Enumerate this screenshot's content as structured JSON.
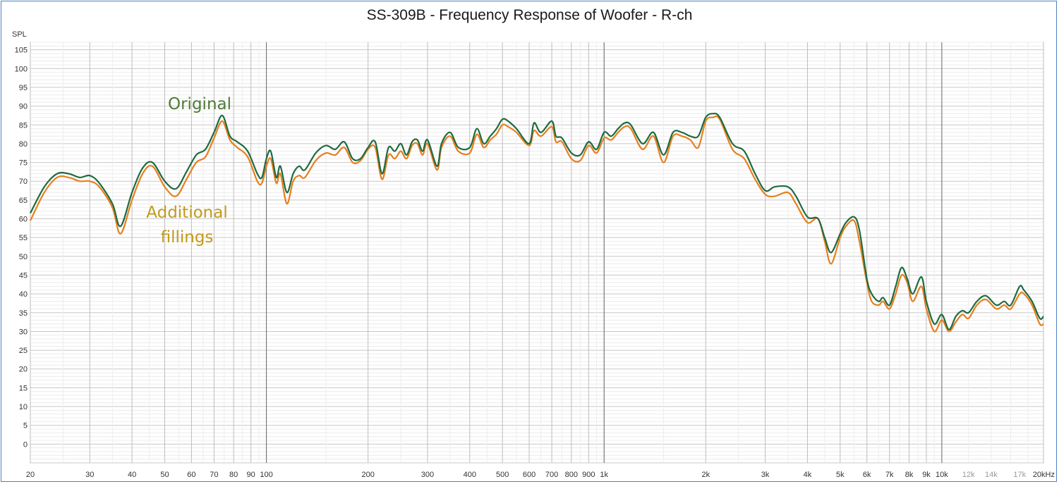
{
  "chart_data": {
    "type": "line",
    "title": "SS-309B - Frequency Response of Woofer - R-ch",
    "ylabel": "SPL",
    "x_scale": "log",
    "xlim": [
      20,
      20000
    ],
    "ylim": [
      -5,
      107
    ],
    "grid": true,
    "y_ticks": [
      0,
      5,
      10,
      15,
      20,
      25,
      30,
      35,
      40,
      45,
      50,
      55,
      60,
      65,
      70,
      75,
      80,
      85,
      90,
      95,
      100,
      105
    ],
    "x_ticks": [
      {
        "v": 20,
        "label": "20"
      },
      {
        "v": 30,
        "label": "30"
      },
      {
        "v": 40,
        "label": "40"
      },
      {
        "v": 50,
        "label": "50"
      },
      {
        "v": 60,
        "label": "60"
      },
      {
        "v": 70,
        "label": "70"
      },
      {
        "v": 80,
        "label": "80"
      },
      {
        "v": 90,
        "label": "90"
      },
      {
        "v": 100,
        "label": "100"
      },
      {
        "v": 200,
        "label": "200"
      },
      {
        "v": 300,
        "label": "300"
      },
      {
        "v": 400,
        "label": "400"
      },
      {
        "v": 500,
        "label": "500"
      },
      {
        "v": 600,
        "label": "600"
      },
      {
        "v": 700,
        "label": "700"
      },
      {
        "v": 800,
        "label": "800"
      },
      {
        "v": 900,
        "label": "900"
      },
      {
        "v": 1000,
        "label": "1k"
      },
      {
        "v": 2000,
        "label": "2k"
      },
      {
        "v": 3000,
        "label": "3k"
      },
      {
        "v": 4000,
        "label": "4k"
      },
      {
        "v": 5000,
        "label": "5k"
      },
      {
        "v": 6000,
        "label": "6k"
      },
      {
        "v": 7000,
        "label": "7k"
      },
      {
        "v": 8000,
        "label": "8k"
      },
      {
        "v": 9000,
        "label": "9k"
      },
      {
        "v": 10000,
        "label": "10k"
      },
      {
        "v": 12000,
        "label": "12k",
        "minor": true
      },
      {
        "v": 14000,
        "label": "14k",
        "minor": true
      },
      {
        "v": 17000,
        "label": "17k",
        "minor": true
      },
      {
        "v": 20000,
        "label": "20kHz"
      }
    ],
    "series": [
      {
        "name": "Original",
        "color": "#1e6b3f",
        "x": [
          20,
          22,
          24,
          26,
          28,
          30,
          32,
          35,
          37,
          40,
          43,
          46,
          50,
          54,
          58,
          62,
          66,
          70,
          74,
          78,
          82,
          88,
          94,
          97,
          100,
          103,
          107,
          110,
          115,
          120,
          125,
          130,
          140,
          150,
          160,
          170,
          180,
          190,
          200,
          210,
          220,
          230,
          240,
          250,
          260,
          270,
          280,
          290,
          300,
          320,
          330,
          350,
          370,
          400,
          420,
          440,
          460,
          480,
          500,
          520,
          550,
          600,
          620,
          650,
          700,
          720,
          750,
          800,
          850,
          900,
          950,
          1000,
          1050,
          1100,
          1150,
          1200,
          1300,
          1400,
          1500,
          1600,
          1700,
          1800,
          1900,
          2000,
          2100,
          2200,
          2400,
          2600,
          2800,
          3000,
          3200,
          3500,
          3700,
          4000,
          4300,
          4500,
          4700,
          5000,
          5200,
          5500,
          5700,
          6000,
          6200,
          6500,
          6700,
          7000,
          7300,
          7600,
          7900,
          8200,
          8700,
          9000,
          9500,
          10000,
          10500,
          11000,
          11500,
          12000,
          12700,
          13500,
          14500,
          15300,
          16000,
          17000,
          17500,
          18500,
          19500,
          20000
        ],
        "y": [
          61.5,
          68.5,
          72,
          72,
          71,
          71.5,
          69.5,
          64,
          58,
          67,
          73.5,
          75,
          70,
          68,
          72.5,
          77,
          78.5,
          83,
          87.5,
          82,
          80.5,
          78,
          72,
          71,
          76,
          78,
          71,
          74,
          67,
          72,
          74,
          73,
          77.5,
          79.5,
          78.5,
          80.5,
          76,
          76,
          79,
          80.5,
          72,
          79,
          78,
          80,
          77,
          80.5,
          81,
          78,
          81,
          74,
          80,
          83,
          79,
          79,
          84,
          80,
          82,
          84,
          86.5,
          86,
          84,
          80,
          85.5,
          83,
          86,
          82,
          81.5,
          77.5,
          77,
          80.5,
          78.5,
          83,
          82,
          84,
          85.5,
          85,
          80,
          83,
          77,
          83,
          83,
          82,
          82,
          87,
          88,
          87,
          80,
          78,
          72,
          67.5,
          68.5,
          68.5,
          66,
          60.5,
          60,
          55,
          51,
          56,
          59,
          60.5,
          57,
          44,
          40,
          38,
          39,
          37,
          42,
          47,
          44,
          40,
          44.5,
          38,
          32,
          34.5,
          30.5,
          34,
          35.5,
          35,
          38,
          39.5,
          37,
          38,
          37,
          42,
          41,
          38,
          33.5,
          34
        ]
      },
      {
        "name": "Additional fillings",
        "color": "#e87e1e",
        "x": [
          20,
          22,
          24,
          26,
          28,
          30,
          32,
          35,
          37,
          40,
          43,
          46,
          50,
          54,
          58,
          62,
          66,
          70,
          74,
          78,
          82,
          88,
          94,
          97,
          100,
          103,
          107,
          110,
          115,
          120,
          125,
          130,
          140,
          150,
          160,
          170,
          180,
          190,
          200,
          210,
          220,
          230,
          240,
          250,
          260,
          270,
          280,
          290,
          300,
          320,
          330,
          350,
          370,
          400,
          420,
          440,
          460,
          480,
          500,
          520,
          550,
          600,
          620,
          650,
          700,
          720,
          750,
          800,
          850,
          900,
          950,
          1000,
          1050,
          1100,
          1150,
          1200,
          1300,
          1400,
          1500,
          1600,
          1700,
          1800,
          1900,
          2000,
          2100,
          2200,
          2400,
          2600,
          2800,
          3000,
          3200,
          3500,
          3700,
          4000,
          4300,
          4500,
          4700,
          5000,
          5200,
          5500,
          5700,
          6000,
          6200,
          6500,
          6700,
          7000,
          7300,
          7600,
          7900,
          8200,
          8700,
          9000,
          9500,
          10000,
          10500,
          11000,
          11500,
          12000,
          12700,
          13500,
          14500,
          15300,
          16000,
          17000,
          17500,
          18500,
          19500,
          20000
        ],
        "y": [
          59.5,
          67,
          71,
          71,
          70,
          70,
          68.5,
          63,
          56,
          65,
          72,
          74,
          68.5,
          66,
          70.5,
          75,
          76.5,
          81.5,
          86,
          81,
          79,
          76.5,
          70,
          69.5,
          74,
          76,
          69.5,
          72,
          64,
          70,
          71.5,
          71,
          75.5,
          77.5,
          77,
          79,
          75,
          75.5,
          78.5,
          79,
          70.5,
          77,
          76,
          78,
          76,
          79.5,
          80,
          77,
          80,
          73,
          79,
          82,
          78,
          77.5,
          82.5,
          79,
          81,
          82.5,
          85,
          84.5,
          83,
          79.5,
          83.5,
          82,
          84.5,
          80.5,
          80.5,
          76,
          75.5,
          79.5,
          77.5,
          81.5,
          81,
          83,
          84.5,
          84,
          78.5,
          82,
          75,
          82,
          82,
          81,
          79,
          86,
          87,
          86.5,
          78.5,
          76,
          70.5,
          66.5,
          66,
          67,
          64,
          59,
          60,
          54,
          48,
          55,
          58,
          59.5,
          54,
          43,
          38,
          37,
          38,
          36,
          40,
          45,
          43,
          38,
          42,
          36,
          30,
          33,
          30,
          32.5,
          34.5,
          33.5,
          37,
          38.5,
          36,
          37,
          36,
          40,
          40,
          37,
          32,
          32
        ]
      }
    ],
    "annotations": [
      {
        "text": "Original",
        "color": "#4f7b35"
      },
      {
        "text": "Additional\nfillings",
        "color": "#c39a1a"
      }
    ]
  }
}
